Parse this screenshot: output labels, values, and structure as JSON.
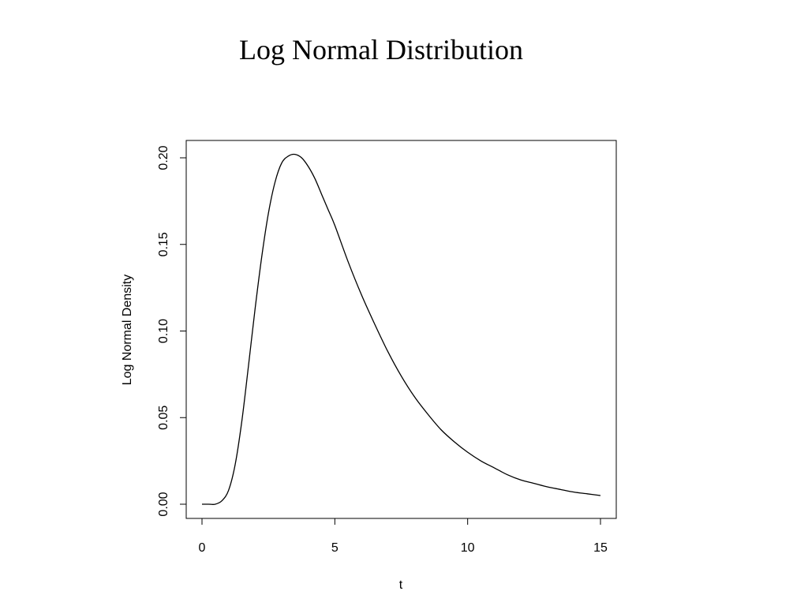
{
  "slide": {
    "title": "Log Normal Distribution"
  },
  "chart_data": {
    "type": "line",
    "title": "",
    "xlabel": "t",
    "ylabel": "Log Normal Density",
    "xlim": [
      0,
      15
    ],
    "ylim": [
      0.0,
      0.2
    ],
    "xticks": [
      0,
      5,
      10,
      15
    ],
    "xtick_labels": [
      "0",
      "5",
      "10",
      "15"
    ],
    "yticks": [
      0.0,
      0.05,
      0.1,
      0.15,
      0.2
    ],
    "ytick_labels": [
      "0.00",
      "0.05",
      "0.10",
      "0.15",
      "0.20"
    ],
    "grid": false,
    "legend": "none",
    "line_color": "#000000",
    "series": [
      {
        "x": [
          0.0,
          0.25,
          0.5,
          0.75,
          1.0,
          1.25,
          1.5,
          1.75,
          2.0,
          2.25,
          2.5,
          2.75,
          3.0,
          3.25,
          3.5,
          3.75,
          4.0,
          4.25,
          4.5,
          4.75,
          5.0,
          5.5,
          6.0,
          6.5,
          7.0,
          7.5,
          8.0,
          8.5,
          9.0,
          9.5,
          10.0,
          10.5,
          11.0,
          11.5,
          12.0,
          12.5,
          13.0,
          13.5,
          14.0,
          14.5,
          15.0
        ],
        "y": [
          0.0,
          0.0,
          0.0,
          0.002,
          0.008,
          0.023,
          0.048,
          0.08,
          0.113,
          0.143,
          0.168,
          0.186,
          0.197,
          0.201,
          0.202,
          0.2,
          0.195,
          0.188,
          0.179,
          0.17,
          0.161,
          0.14,
          0.121,
          0.104,
          0.088,
          0.074,
          0.062,
          0.052,
          0.043,
          0.036,
          0.03,
          0.025,
          0.021,
          0.017,
          0.014,
          0.012,
          0.01,
          0.0085,
          0.007,
          0.006,
          0.005
        ]
      }
    ]
  }
}
